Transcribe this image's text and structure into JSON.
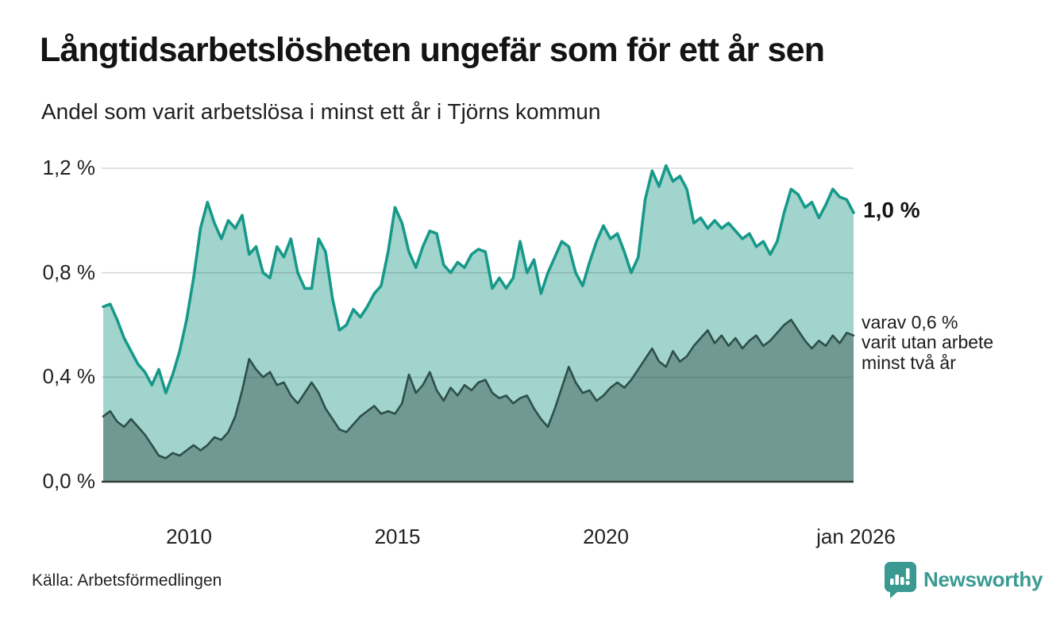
{
  "chart_data": {
    "type": "area",
    "title": "Långtidsarbetslösheten ungefär som för ett år sen",
    "subtitle": "Andel som varit arbetslösa i minst ett år i Tjörns kommun",
    "unit": "%",
    "x_start_year": 2008,
    "x_end_year": 2026,
    "x_step_months": 2,
    "ylim": [
      0,
      1.2
    ],
    "grid": true,
    "legend_position": "none",
    "x_ticks": [
      {
        "year": 2010,
        "label": "2010"
      },
      {
        "year": 2015,
        "label": "2015"
      },
      {
        "year": 2020,
        "label": "2020"
      },
      {
        "year": 2026,
        "label": "jan 2026"
      }
    ],
    "y_ticks": [
      {
        "value": 0,
        "label": "0,0 %"
      },
      {
        "value": 0.4,
        "label": "0,4 %"
      },
      {
        "value": 0.8,
        "label": "0,8 %"
      },
      {
        "value": 1.2,
        "label": "1,2 %"
      }
    ],
    "series": [
      {
        "name": "Andel som varit arbetslösa i minst ett år (totalt)",
        "line_color": "#17998a",
        "fill_color": "#a1d4cd",
        "end_value_label": "1,0 %",
        "values": [
          0.67,
          0.68,
          0.62,
          0.55,
          0.5,
          0.45,
          0.42,
          0.37,
          0.43,
          0.34,
          0.41,
          0.5,
          0.62,
          0.78,
          0.97,
          1.07,
          0.99,
          0.93,
          1.0,
          0.97,
          1.02,
          0.87,
          0.9,
          0.8,
          0.78,
          0.9,
          0.86,
          0.93,
          0.8,
          0.74,
          0.74,
          0.93,
          0.88,
          0.7,
          0.58,
          0.6,
          0.66,
          0.63,
          0.67,
          0.72,
          0.75,
          0.88,
          1.05,
          0.99,
          0.88,
          0.82,
          0.9,
          0.96,
          0.95,
          0.83,
          0.8,
          0.84,
          0.82,
          0.87,
          0.89,
          0.88,
          0.74,
          0.78,
          0.74,
          0.78,
          0.92,
          0.8,
          0.85,
          0.72,
          0.8,
          0.86,
          0.92,
          0.9,
          0.8,
          0.75,
          0.84,
          0.92,
          0.98,
          0.93,
          0.95,
          0.88,
          0.8,
          0.86,
          1.08,
          1.19,
          1.13,
          1.21,
          1.15,
          1.17,
          1.12,
          0.99,
          1.01,
          0.97,
          1.0,
          0.97,
          0.99,
          0.96,
          0.93,
          0.95,
          0.9,
          0.92,
          0.87,
          0.92,
          1.03,
          1.12,
          1.1,
          1.05,
          1.07,
          1.01,
          1.06,
          1.12,
          1.09,
          1.08,
          1.03
        ]
      },
      {
        "name": "varav utan arbete minst två år",
        "line_color": "#2d4f49",
        "fill_color": "#709993",
        "end_value_label": "0,6 %",
        "values": [
          0.25,
          0.27,
          0.23,
          0.21,
          0.24,
          0.21,
          0.18,
          0.14,
          0.1,
          0.09,
          0.11,
          0.1,
          0.12,
          0.14,
          0.12,
          0.14,
          0.17,
          0.16,
          0.19,
          0.25,
          0.35,
          0.47,
          0.43,
          0.4,
          0.42,
          0.37,
          0.38,
          0.33,
          0.3,
          0.34,
          0.38,
          0.34,
          0.28,
          0.24,
          0.2,
          0.19,
          0.22,
          0.25,
          0.27,
          0.29,
          0.26,
          0.27,
          0.26,
          0.3,
          0.41,
          0.34,
          0.37,
          0.42,
          0.35,
          0.31,
          0.36,
          0.33,
          0.37,
          0.35,
          0.38,
          0.39,
          0.34,
          0.32,
          0.33,
          0.3,
          0.32,
          0.33,
          0.28,
          0.24,
          0.21,
          0.28,
          0.36,
          0.44,
          0.38,
          0.34,
          0.35,
          0.31,
          0.33,
          0.36,
          0.38,
          0.36,
          0.39,
          0.43,
          0.47,
          0.51,
          0.46,
          0.44,
          0.5,
          0.46,
          0.48,
          0.52,
          0.55,
          0.58,
          0.53,
          0.56,
          0.52,
          0.55,
          0.51,
          0.54,
          0.56,
          0.52,
          0.54,
          0.57,
          0.6,
          0.62,
          0.58,
          0.54,
          0.51,
          0.54,
          0.52,
          0.56,
          0.53,
          0.57,
          0.56
        ]
      }
    ],
    "annotations": {
      "total_end": "1,0 %",
      "two_year_lines": [
        "varav 0,6 %",
        "varit utan arbete",
        "minst två år"
      ]
    }
  },
  "source": {
    "label": "Källa: Arbetsförmedlingen"
  },
  "branding": {
    "wordmark": "Newsworthy",
    "color": "#3a9a92"
  }
}
